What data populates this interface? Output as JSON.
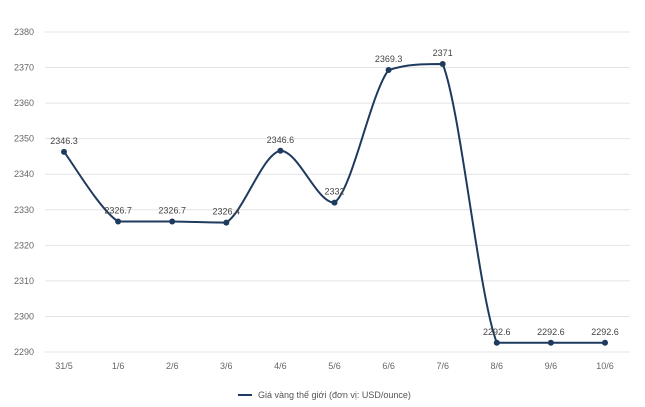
{
  "chart_data": {
    "type": "line",
    "categories": [
      "31/5",
      "1/6",
      "2/6",
      "3/6",
      "4/6",
      "5/6",
      "6/6",
      "7/6",
      "8/6",
      "9/6",
      "10/6"
    ],
    "series": [
      {
        "name": "Giá vàng thế giới (đơn vị: USD/ounce)",
        "values": [
          2346.3,
          2326.7,
          2326.7,
          2326.4,
          2346.6,
          2332,
          2369.3,
          2371,
          2292.6,
          2292.6,
          2292.6
        ],
        "color": "#1f3a5f"
      }
    ],
    "data_labels": [
      "2346.3",
      "2326.7",
      "2326.7",
      "2326.4",
      "2346.6",
      "2332",
      "2369.3",
      "2371",
      "2292.6",
      "2292.6",
      "2292.6"
    ],
    "yticks": [
      "2290",
      "2300",
      "2310",
      "2320",
      "2330",
      "2340",
      "2350",
      "2360",
      "2370",
      "2380"
    ],
    "ylim": [
      2290,
      2380
    ],
    "grid": true,
    "legend_position": "bottom",
    "title": "",
    "xlabel": "",
    "ylabel": ""
  }
}
